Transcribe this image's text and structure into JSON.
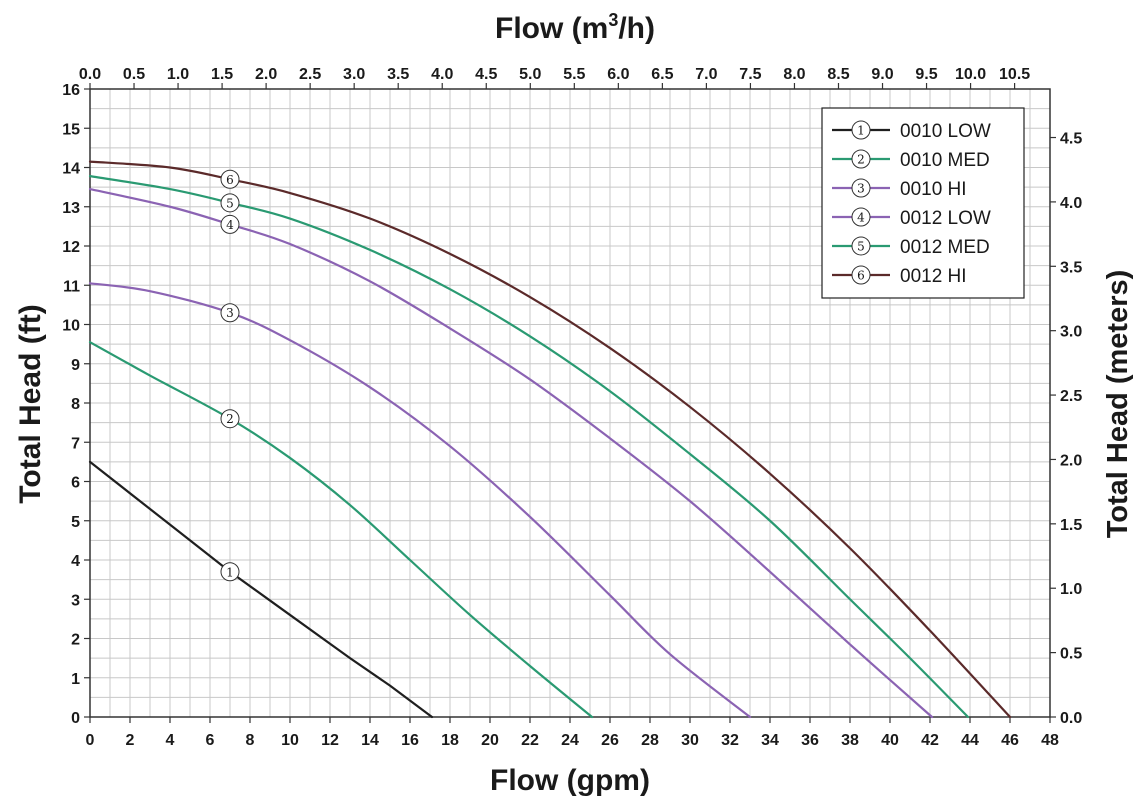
{
  "chart_data": {
    "type": "line",
    "xlabel": "Flow (gpm)",
    "x2label_prefix": "Flow (m",
    "x2label_sup": "3",
    "x2label_suffix": "/h)",
    "ylabel": "Total Head (ft)",
    "y2label": "Total Head (meters)",
    "xlim": [
      0,
      48
    ],
    "ylim": [
      0,
      16
    ],
    "x_ticks": [
      "0",
      "2",
      "4",
      "6",
      "8",
      "10",
      "12",
      "14",
      "16",
      "18",
      "20",
      "22",
      "24",
      "26",
      "28",
      "30",
      "32",
      "34",
      "36",
      "38",
      "40",
      "42",
      "44",
      "46",
      "48"
    ],
    "y_ticks": [
      "0",
      "1",
      "2",
      "3",
      "4",
      "5",
      "6",
      "7",
      "8",
      "9",
      "10",
      "11",
      "12",
      "13",
      "14",
      "15",
      "16"
    ],
    "x2_ticks": [
      "0.0",
      "0.5",
      "1.0",
      "1.5",
      "2.0",
      "2.5",
      "3.0",
      "3.5",
      "4.0",
      "4.5",
      "5.0",
      "5.5",
      "6.0",
      "6.5",
      "7.0",
      "7.5",
      "8.0",
      "8.5",
      "9.0",
      "9.5",
      "10.0",
      "10.5"
    ],
    "y2_ticks": [
      "0.0",
      "0.5",
      "1.0",
      "1.5",
      "2.0",
      "2.5",
      "3.0",
      "3.5",
      "4.0",
      "4.5"
    ],
    "grid": true,
    "legend_position": "top-right",
    "series": [
      {
        "name": "0010 LOW",
        "marker": "1",
        "color": "#1f1f1f",
        "x": [
          0,
          4,
          7,
          10,
          13,
          15,
          17.1
        ],
        "y": [
          6.5,
          4.9,
          3.7,
          2.6,
          1.5,
          0.8,
          0
        ],
        "marker_at": [
          7,
          3.7
        ]
      },
      {
        "name": "0010 MED",
        "marker": "2",
        "color": "#2a9a72",
        "x": [
          0,
          3,
          7,
          10,
          13,
          16,
          19,
          22,
          25.1
        ],
        "y": [
          9.55,
          8.7,
          7.6,
          6.6,
          5.4,
          4.0,
          2.6,
          1.3,
          0
        ],
        "marker_at": [
          7,
          7.6
        ]
      },
      {
        "name": "0010 HI",
        "marker": "3",
        "color": "#8b63b3",
        "x": [
          0,
          3,
          7,
          10,
          14,
          18,
          22,
          26,
          29,
          33
        ],
        "y": [
          11.05,
          10.85,
          10.3,
          9.6,
          8.4,
          6.9,
          5.1,
          3.1,
          1.6,
          0
        ],
        "marker_at": [
          7,
          10.3
        ]
      },
      {
        "name": "0012 LOW",
        "marker": "4",
        "color": "#8b63b3",
        "x": [
          0,
          4,
          7,
          10,
          14,
          18,
          22,
          26,
          30,
          34,
          38,
          42.1
        ],
        "y": [
          13.45,
          13.0,
          12.55,
          12.05,
          11.1,
          9.9,
          8.6,
          7.1,
          5.5,
          3.7,
          1.85,
          0
        ],
        "marker_at": [
          7,
          12.55
        ]
      },
      {
        "name": "0012 MED",
        "marker": "5",
        "color": "#2a9a72",
        "x": [
          0,
          4,
          7,
          10,
          14,
          18,
          22,
          26,
          30,
          34,
          38,
          41,
          43.9
        ],
        "y": [
          13.78,
          13.45,
          13.1,
          12.7,
          11.9,
          10.9,
          9.7,
          8.3,
          6.7,
          5.0,
          3.0,
          1.5,
          0
        ],
        "marker_at": [
          7,
          13.1
        ]
      },
      {
        "name": "0012 HI",
        "marker": "6",
        "color": "#5b2a2a",
        "x": [
          0,
          4,
          7,
          10,
          14,
          18,
          22,
          26,
          30,
          34,
          38,
          42,
          46
        ],
        "y": [
          14.15,
          14.0,
          13.7,
          13.35,
          12.7,
          11.8,
          10.7,
          9.4,
          7.9,
          6.2,
          4.3,
          2.2,
          0
        ],
        "marker_at": [
          7,
          13.7
        ]
      }
    ]
  }
}
